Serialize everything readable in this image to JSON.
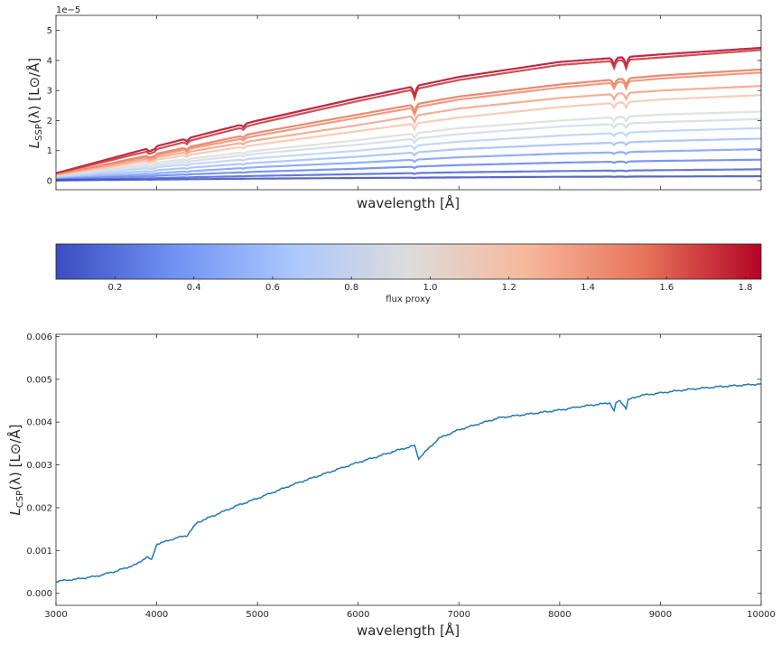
{
  "chart_data": [
    {
      "type": "line",
      "title": "",
      "xlabel": "wavelength [Å]",
      "ylabel_main": "L",
      "ylabel_sub": "SSP",
      "ylabel_rest": "(λ) [L⊙/Å]",
      "offset_text": "1e−5",
      "xlim": [
        3000,
        10000
      ],
      "ylim": [
        -0.3,
        5.5
      ],
      "yticks": [
        0,
        1,
        2,
        3,
        4,
        5
      ],
      "ytick_labels": [
        "0",
        "1",
        "2",
        "3",
        "4",
        "5"
      ],
      "xtick_labels_visible": false,
      "series": [
        {
          "flux_proxy": 1.8,
          "color": "#b40426",
          "values_at": {
            "x": [
              3000,
              4000,
              5000,
              6000,
              7000,
              8000,
              9000,
              10000
            ],
            "y": [
              0.25,
              1.15,
              2.0,
              2.75,
              3.45,
              3.95,
              4.2,
              4.42
            ]
          }
        },
        {
          "flux_proxy": 1.7,
          "color": "#c53334",
          "values_at": {
            "x": [
              3000,
              4000,
              5000,
              6000,
              7000,
              8000,
              9000,
              10000
            ],
            "y": [
              0.24,
              1.05,
              1.9,
              2.65,
              3.35,
              3.85,
              4.1,
              4.35
            ]
          }
        },
        {
          "flux_proxy": 1.45,
          "color": "#e7745b",
          "values_at": {
            "x": [
              3000,
              4000,
              5000,
              6000,
              7000,
              8000,
              9000,
              10000
            ],
            "y": [
              0.2,
              0.9,
              1.6,
              2.2,
              2.8,
              3.2,
              3.5,
              3.7
            ]
          }
        },
        {
          "flux_proxy": 1.35,
          "color": "#f08a6c",
          "values_at": {
            "x": [
              3000,
              4000,
              5000,
              6000,
              7000,
              8000,
              9000,
              10000
            ],
            "y": [
              0.19,
              0.85,
              1.5,
              2.1,
              2.7,
              3.1,
              3.4,
              3.6
            ]
          }
        },
        {
          "flux_proxy": 1.2,
          "color": "#f5a081",
          "values_at": {
            "x": [
              3000,
              4000,
              5000,
              6000,
              7000,
              8000,
              9000,
              10000
            ],
            "y": [
              0.17,
              0.78,
              1.35,
              1.85,
              2.4,
              2.75,
              3.0,
              3.15
            ]
          }
        },
        {
          "flux_proxy": 1.1,
          "color": "#f5c4ac",
          "values_at": {
            "x": [
              3000,
              4000,
              5000,
              6000,
              7000,
              8000,
              9000,
              10000
            ],
            "y": [
              0.15,
              0.7,
              1.2,
              1.65,
              2.1,
              2.45,
              2.7,
              2.85
            ]
          }
        },
        {
          "flux_proxy": 1.0,
          "color": "#dddcdc",
          "values_at": {
            "x": [
              3000,
              4000,
              5000,
              6000,
              7000,
              8000,
              9000,
              10000
            ],
            "y": [
              0.13,
              0.6,
              1.0,
              1.35,
              1.75,
              2.0,
              2.2,
              2.3
            ]
          }
        },
        {
          "flux_proxy": 0.9,
          "color": "#d1dae9",
          "values_at": {
            "x": [
              3000,
              4000,
              5000,
              6000,
              7000,
              8000,
              9000,
              10000
            ],
            "y": [
              0.11,
              0.52,
              0.9,
              1.2,
              1.55,
              1.8,
              1.95,
              2.05
            ]
          }
        },
        {
          "flux_proxy": 0.75,
          "color": "#b9d0f9",
          "values_at": {
            "x": [
              3000,
              4000,
              5000,
              6000,
              7000,
              8000,
              9000,
              10000
            ],
            "y": [
              0.09,
              0.45,
              0.75,
              1.0,
              1.3,
              1.5,
              1.65,
              1.75
            ]
          }
        },
        {
          "flux_proxy": 0.6,
          "color": "#9dbdff",
          "values_at": {
            "x": [
              3000,
              4000,
              5000,
              6000,
              7000,
              8000,
              9000,
              10000
            ],
            "y": [
              0.07,
              0.35,
              0.6,
              0.8,
              1.05,
              1.2,
              1.32,
              1.4
            ]
          }
        },
        {
          "flux_proxy": 0.45,
          "color": "#7b9ff9",
          "values_at": {
            "x": [
              3000,
              4000,
              5000,
              6000,
              7000,
              8000,
              9000,
              10000
            ],
            "y": [
              0.05,
              0.25,
              0.45,
              0.6,
              0.78,
              0.9,
              0.98,
              1.05
            ]
          }
        },
        {
          "flux_proxy": 0.3,
          "color": "#6282ea",
          "values_at": {
            "x": [
              3000,
              4000,
              5000,
              6000,
              7000,
              8000,
              9000,
              10000
            ],
            "y": [
              0.035,
              0.17,
              0.3,
              0.4,
              0.52,
              0.6,
              0.66,
              0.7
            ]
          }
        },
        {
          "flux_proxy": 0.15,
          "color": "#4a63d3",
          "values_at": {
            "x": [
              3000,
              4000,
              5000,
              6000,
              7000,
              8000,
              9000,
              10000
            ],
            "y": [
              0.02,
              0.09,
              0.16,
              0.22,
              0.28,
              0.32,
              0.35,
              0.38
            ]
          }
        },
        {
          "flux_proxy": 0.05,
          "color": "#3b4cc0",
          "values_at": {
            "x": [
              3000,
              4000,
              5000,
              6000,
              7000,
              8000,
              9000,
              10000
            ],
            "y": [
              0.01,
              0.04,
              0.07,
              0.09,
              0.11,
              0.13,
              0.14,
              0.15
            ]
          }
        }
      ]
    },
    {
      "type": "heatmap",
      "label": "flux proxy",
      "range": [
        0.05,
        1.84
      ],
      "ticks": [
        0.2,
        0.4,
        0.6,
        0.8,
        1.0,
        1.2,
        1.4,
        1.6,
        1.8
      ],
      "tick_labels": [
        "0.2",
        "0.4",
        "0.6",
        "0.8",
        "1.0",
        "1.2",
        "1.4",
        "1.6",
        "1.8"
      ],
      "colormap_stops": [
        "#3b4cc0",
        "#6f92f3",
        "#aac7fd",
        "#dddcdc",
        "#f7b89c",
        "#e7745b",
        "#b40426"
      ]
    },
    {
      "type": "line",
      "title": "",
      "xlabel": "wavelength [Å]",
      "ylabel_main": "L",
      "ylabel_sub": "CSP",
      "ylabel_rest": "(λ) [L⊙/Å]",
      "xlim": [
        3000,
        10000
      ],
      "ylim": [
        -0.00028,
        0.00605
      ],
      "xticks": [
        3000,
        4000,
        5000,
        6000,
        7000,
        8000,
        9000,
        10000
      ],
      "xtick_labels": [
        "3000",
        "4000",
        "5000",
        "6000",
        "7000",
        "8000",
        "9000",
        "10000"
      ],
      "yticks": [
        0.0,
        0.001,
        0.002,
        0.003,
        0.004,
        0.005,
        0.006
      ],
      "ytick_labels": [
        "0.000",
        "0.001",
        "0.002",
        "0.003",
        "0.004",
        "0.005",
        "0.006"
      ],
      "series": [
        {
          "color": "#1f77b4",
          "x": [
            3000,
            3200,
            3400,
            3600,
            3800,
            3900,
            3950,
            4000,
            4100,
            4200,
            4300,
            4400,
            4600,
            4800,
            5000,
            5200,
            5400,
            5600,
            5800,
            6000,
            6200,
            6400,
            6560,
            6600,
            6800,
            7000,
            7200,
            7400,
            7600,
            7800,
            8000,
            8200,
            8500,
            8540,
            8560,
            8600,
            8660,
            8680,
            8800,
            9000,
            9200,
            9400,
            9600,
            9800,
            10000
          ],
          "y": [
            0.00028,
            0.00033,
            0.0004,
            0.00052,
            0.00068,
            0.00085,
            0.00078,
            0.00115,
            0.00122,
            0.0013,
            0.00135,
            0.00165,
            0.00185,
            0.00205,
            0.00222,
            0.0024,
            0.00258,
            0.00274,
            0.0029,
            0.00306,
            0.0032,
            0.00335,
            0.00345,
            0.00315,
            0.00362,
            0.00382,
            0.00396,
            0.0041,
            0.00416,
            0.00422,
            0.00428,
            0.00436,
            0.00445,
            0.00425,
            0.00445,
            0.0045,
            0.00432,
            0.00452,
            0.00462,
            0.00468,
            0.00474,
            0.00479,
            0.00483,
            0.00486,
            0.00489
          ]
        }
      ]
    }
  ]
}
